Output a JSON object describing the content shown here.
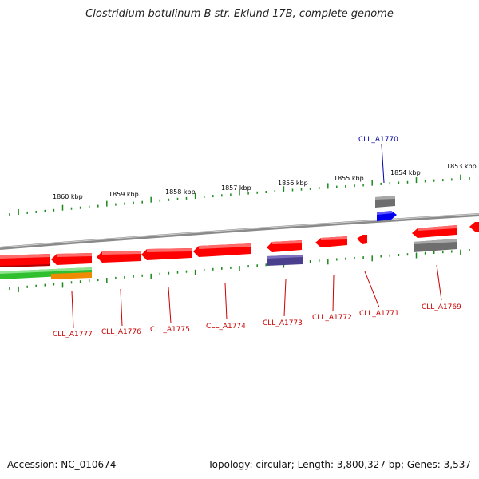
{
  "title": "Clostridium botulinum B str. Eklund 17B, complete genome",
  "footer": {
    "accession": "Accession: NC_010674",
    "summary": "Topology: circular; Length: 3,800,327 bp; Genes: 3,537"
  },
  "colors": {
    "gene_red": "#ff0000",
    "gene_gray": "#6e6e6e",
    "gene_blue": "#0000ee",
    "gene_purple": "#4a3f8c",
    "gene_green": "#2fbf2f",
    "gene_orange": "#f08a00",
    "ticks": "#1a8a1a",
    "backbone": "#8a8a8a",
    "label_red": "#cc0000",
    "label_blue": "#0000aa"
  },
  "kbp_labels": [
    "1860 kbp",
    "1859 kbp",
    "1858 kbp",
    "1857 kbp",
    "1856 kbp",
    "1855 kbp",
    "1854 kbp",
    "1853 kbp"
  ],
  "genes": [
    {
      "label": "CLL_A1777",
      "color": "red"
    },
    {
      "label": "CLL_A1776",
      "color": "red"
    },
    {
      "label": "CLL_A1775",
      "color": "red"
    },
    {
      "label": "CLL_A1774",
      "color": "red"
    },
    {
      "label": "CLL_A1773",
      "color": "red"
    },
    {
      "label": "CLL_A1772",
      "color": "red"
    },
    {
      "label": "CLL_A1771",
      "color": "red"
    },
    {
      "label": "CLL_A1770",
      "color": "blue"
    },
    {
      "label": "CLL_A1769",
      "color": "red"
    }
  ]
}
